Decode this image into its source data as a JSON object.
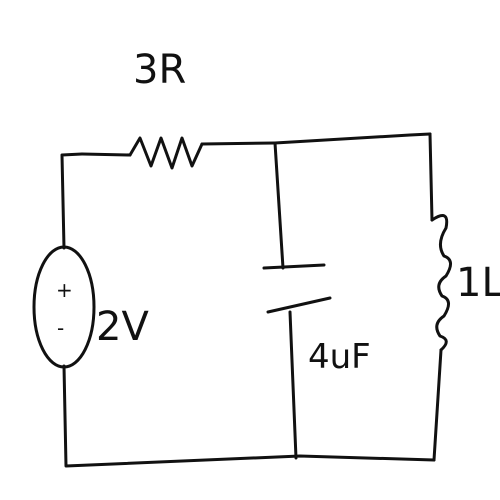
{
  "circuit": {
    "resistor": {
      "label": "3R"
    },
    "source": {
      "label": "2V",
      "plus": "+",
      "minus": "-"
    },
    "capacitor": {
      "label": "4uF"
    },
    "inductor": {
      "label": "1L"
    }
  }
}
